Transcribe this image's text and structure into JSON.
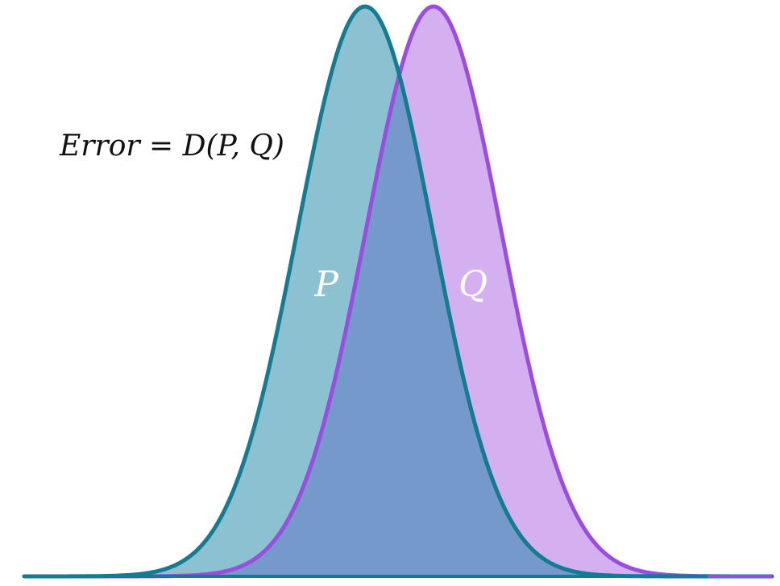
{
  "diagram": {
    "formula": "Error = D(P, Q)",
    "formula_parts": {
      "lhs": "Error",
      "equals": "=",
      "rhs": "D(P, Q)"
    },
    "distributions": [
      {
        "key": "p",
        "label": "P",
        "stroke_color": "#137b92",
        "fill_color": "#8cc1d2"
      },
      {
        "key": "q",
        "label": "Q",
        "stroke_color": "#9b4ddf",
        "fill_color": "#d4b0f1"
      }
    ],
    "overlap_color": "#7599cb",
    "label_text_color": "#ffffff"
  }
}
